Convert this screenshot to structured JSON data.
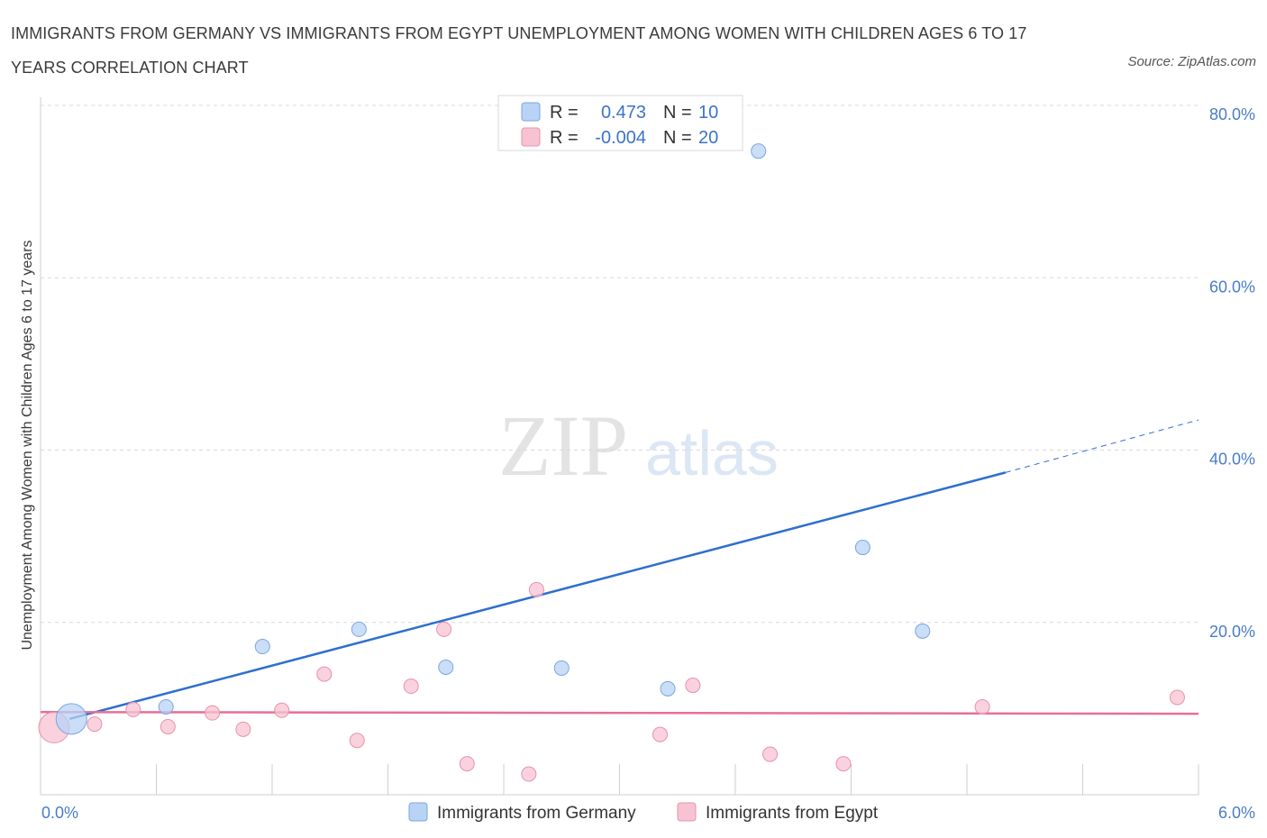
{
  "title": "IMMIGRANTS FROM GERMANY VS IMMIGRANTS FROM EGYPT UNEMPLOYMENT AMONG WOMEN WITH CHILDREN AGES 6 TO 17 YEARS CORRELATION CHART",
  "source": "Source: ZipAtlas.com",
  "watermark": {
    "zip": "ZIP",
    "atlas": "atlas"
  },
  "colors": {
    "germany_fill": "#b8d3f5",
    "germany_stroke": "#7aa6e0",
    "germany_line": "#2e6fcf",
    "egypt_fill": "#f7c3d3",
    "egypt_stroke": "#e891ad",
    "egypt_line": "#e66f98",
    "tick_text": "#4a7cc8",
    "grid": "#d8d8d8"
  },
  "legend": {
    "rows": [
      {
        "r_label": "R =",
        "r_value": "0.473",
        "n_label": "N =",
        "n_value": "10"
      },
      {
        "r_label": "R =",
        "r_value": "-0.004",
        "n_label": "N =",
        "n_value": "20"
      }
    ]
  },
  "chart_data": {
    "type": "scatter",
    "title": "IMMIGRANTS FROM GERMANY VS IMMIGRANTS FROM EGYPT UNEMPLOYMENT AMONG WOMEN WITH CHILDREN AGES 6 TO 17 YEARS CORRELATION CHART",
    "xlabel": "",
    "ylabel": "Unemployment Among Women with Children Ages 6 to 17 years",
    "xlim": [
      0,
      6
    ],
    "ylim": [
      0,
      80
    ],
    "x_tick_labels": [
      "0.0%",
      "6.0%"
    ],
    "y_ticks": [
      20,
      40,
      60,
      80
    ],
    "y_tick_labels": [
      "20.0%",
      "40.0%",
      "60.0%",
      "80.0%"
    ],
    "series": [
      {
        "name": "Immigrants from Germany",
        "R": 0.473,
        "N": 10,
        "points": [
          {
            "x": 0.16,
            "y": 8.8,
            "big": true
          },
          {
            "x": 0.65,
            "y": 10.2
          },
          {
            "x": 1.15,
            "y": 17.2
          },
          {
            "x": 1.65,
            "y": 19.2
          },
          {
            "x": 2.1,
            "y": 14.8
          },
          {
            "x": 2.7,
            "y": 14.7
          },
          {
            "x": 3.25,
            "y": 12.3
          },
          {
            "x": 3.72,
            "y": 74.7
          },
          {
            "x": 4.26,
            "y": 28.7
          },
          {
            "x": 4.57,
            "y": 19.0
          }
        ],
        "trend": {
          "x0": 0.15,
          "y0": 8.8,
          "x1": 5.0,
          "y1": 37.4,
          "dash_to_x": 6.0,
          "dash_to_y": 43.5
        }
      },
      {
        "name": "Immigrants from Egypt",
        "R": -0.004,
        "N": 20,
        "points": [
          {
            "x": 0.07,
            "y": 7.8,
            "big": true
          },
          {
            "x": 0.28,
            "y": 8.2
          },
          {
            "x": 0.48,
            "y": 9.9
          },
          {
            "x": 0.66,
            "y": 7.9
          },
          {
            "x": 0.89,
            "y": 9.5
          },
          {
            "x": 1.05,
            "y": 7.6
          },
          {
            "x": 1.25,
            "y": 9.8
          },
          {
            "x": 1.47,
            "y": 14.0
          },
          {
            "x": 1.64,
            "y": 6.3
          },
          {
            "x": 1.92,
            "y": 12.6
          },
          {
            "x": 2.09,
            "y": 19.2
          },
          {
            "x": 2.21,
            "y": 3.6
          },
          {
            "x": 2.53,
            "y": 2.4
          },
          {
            "x": 2.57,
            "y": 23.8
          },
          {
            "x": 3.21,
            "y": 7.0
          },
          {
            "x": 3.38,
            "y": 12.7
          },
          {
            "x": 3.78,
            "y": 4.7
          },
          {
            "x": 4.16,
            "y": 3.6
          },
          {
            "x": 4.88,
            "y": 10.2
          },
          {
            "x": 5.89,
            "y": 11.3
          }
        ],
        "trend": {
          "x0": 0.0,
          "y0": 9.6,
          "x1": 6.0,
          "y1": 9.4
        }
      }
    ]
  }
}
